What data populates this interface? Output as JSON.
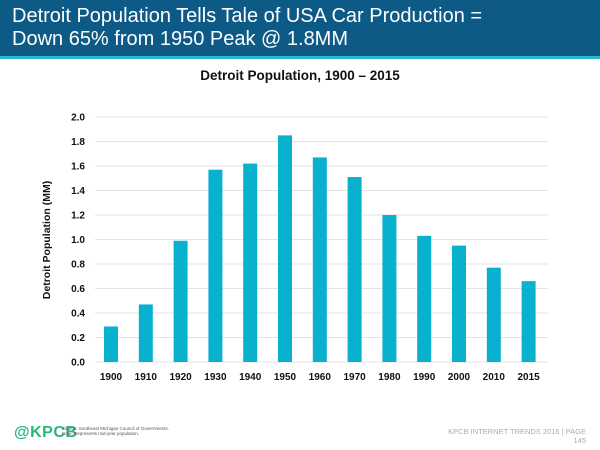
{
  "header": {
    "title_line1": "Detroit Population Tells Tale of USA Car Production =",
    "title_line2": "Down 65% from 1950 Peak @ 1.8MM"
  },
  "colors": {
    "header_bg": "#0c5a85",
    "header_accent": "#2ab7cf",
    "bar": "#08b2cf",
    "logo": "#2bb57b"
  },
  "chart_data": {
    "type": "bar",
    "title": "Detroit Population, 1900 – 2015",
    "xlabel": "",
    "ylabel": "Detroit Population (MM)",
    "categories": [
      "1900",
      "1910",
      "1920",
      "1930",
      "1940",
      "1950",
      "1960",
      "1970",
      "1980",
      "1990",
      "2000",
      "2010",
      "2015"
    ],
    "values": [
      0.29,
      0.47,
      0.99,
      1.57,
      1.62,
      1.85,
      1.67,
      1.51,
      1.2,
      1.03,
      0.95,
      0.77,
      0.66
    ],
    "ylim": [
      0,
      2.0
    ],
    "yticks": [
      "0.0",
      "0.2",
      "0.4",
      "0.6",
      "0.8",
      "1.0",
      "1.2",
      "1.4",
      "1.6",
      "1.8",
      "2.0"
    ],
    "grid": true,
    "legend": "none"
  },
  "footer": {
    "logo": "@KPCB",
    "source_line1": "Source: Southeast Michigan Council of Governments.",
    "source_line2": "Note: Represents mid-year population.",
    "right_line1": "KPCB INTERNET TRENDS 2016  |  PAGE",
    "right_line2": "145"
  }
}
